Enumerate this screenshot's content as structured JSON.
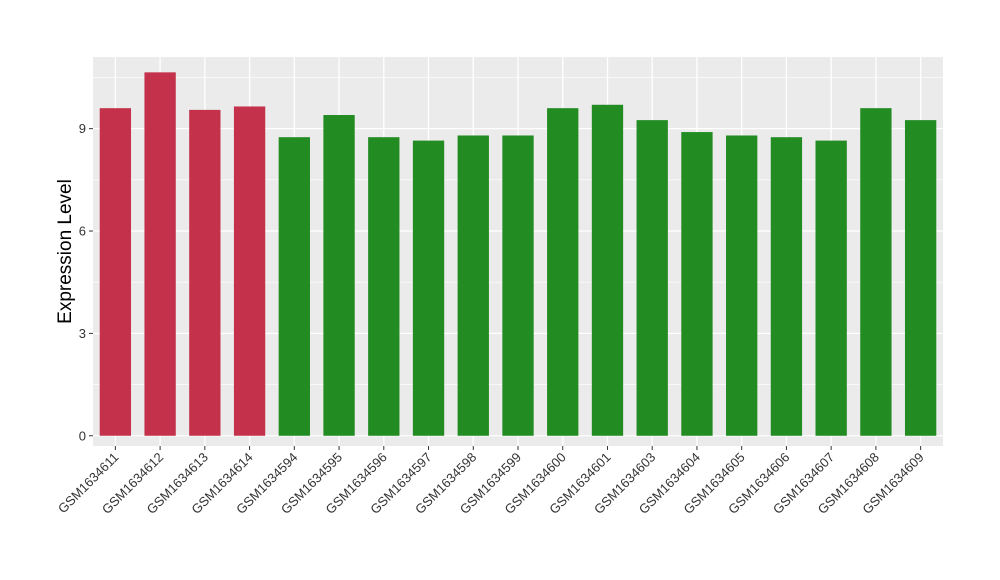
{
  "chart_data": {
    "type": "bar",
    "title": "",
    "xlabel": "",
    "ylabel": "Expression Level",
    "ylim": [
      -0.3,
      11.1
    ],
    "yticks": [
      0,
      3,
      6,
      9
    ],
    "grid": true,
    "legend": "none",
    "categories": [
      "GSM1634611",
      "GSM1634612",
      "GSM1634613",
      "GSM1634614",
      "GSM1634594",
      "GSM1634595",
      "GSM1634596",
      "GSM1634597",
      "GSM1634598",
      "GSM1634599",
      "GSM1634600",
      "GSM1634601",
      "GSM1634603",
      "GSM1634604",
      "GSM1634605",
      "GSM1634606",
      "GSM1634607",
      "GSM1634608",
      "GSM1634609"
    ],
    "values": [
      9.6,
      10.65,
      9.55,
      9.65,
      8.75,
      9.4,
      8.75,
      8.65,
      8.8,
      8.8,
      9.6,
      9.7,
      9.25,
      8.9,
      8.8,
      8.75,
      8.65,
      9.6,
      9.25
    ],
    "bar_colors": [
      "#c4314b",
      "#c4314b",
      "#c4314b",
      "#c4314b",
      "#228b22",
      "#228b22",
      "#228b22",
      "#228b22",
      "#228b22",
      "#228b22",
      "#228b22",
      "#228b22",
      "#228b22",
      "#228b22",
      "#228b22",
      "#228b22",
      "#228b22",
      "#228b22",
      "#228b22"
    ],
    "panel_color": "#ebebeb",
    "grid_color": "#ffffff"
  }
}
